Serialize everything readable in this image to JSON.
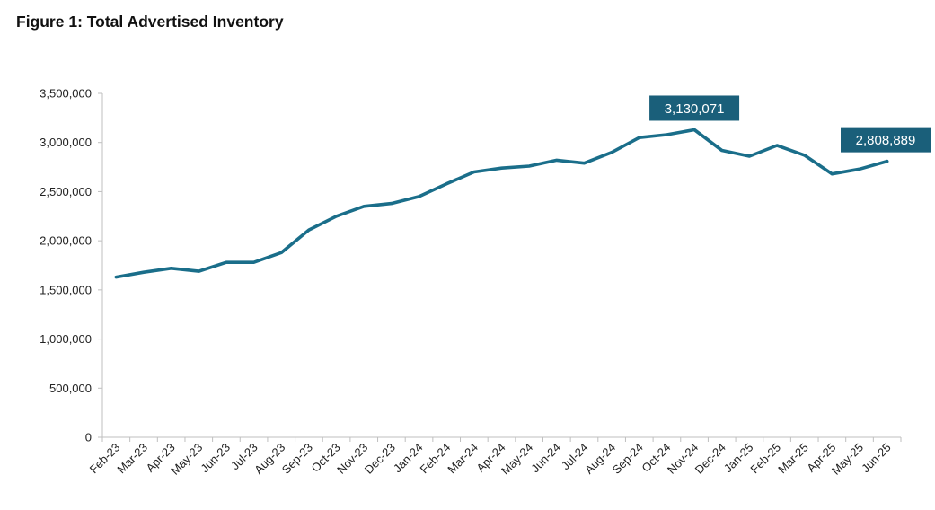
{
  "figure_title": "Figure 1: Total Advertised Inventory",
  "colors": {
    "line": "#1a6e8a",
    "callout_bg": "#1a5f7a",
    "axis": "#bfbfbf",
    "text": "#222222"
  },
  "chart_data": {
    "type": "line",
    "title": "Figure 1: Total Advertised Inventory",
    "xlabel": "",
    "ylabel": "",
    "ylim": [
      0,
      3500000
    ],
    "yticks": [
      0,
      500000,
      1000000,
      1500000,
      2000000,
      2500000,
      3000000,
      3500000
    ],
    "ytick_labels": [
      "0",
      "500,000",
      "1,000,000",
      "1,500,000",
      "2,000,000",
      "2,500,000",
      "3,000,000",
      "3,500,000"
    ],
    "grid": false,
    "legend": "none",
    "categories": [
      "Feb-23",
      "Mar-23",
      "Apr-23",
      "May-23",
      "Jun-23",
      "Jul-23",
      "Aug-23",
      "Sep-23",
      "Oct-23",
      "Nov-23",
      "Dec-23",
      "Jan-24",
      "Feb-24",
      "Mar-24",
      "Apr-24",
      "May-24",
      "Jun-24",
      "Jul-24",
      "Aug-24",
      "Sep-24",
      "Oct-24",
      "Nov-24",
      "Dec-24",
      "Jan-25",
      "Feb-25",
      "Mar-25",
      "Apr-25",
      "May-25",
      "Jun-25"
    ],
    "series": [
      {
        "values": [
          1630000,
          1680000,
          1720000,
          1690000,
          1780000,
          1780000,
          1880000,
          2110000,
          2250000,
          2350000,
          2380000,
          2450000,
          2580000,
          2700000,
          2740000,
          2760000,
          2820000,
          2790000,
          2900000,
          3050000,
          3080000,
          3130071,
          2920000,
          2860000,
          2970000,
          2870000,
          2680000,
          2730000,
          2808889
        ]
      }
    ],
    "annotations": [
      {
        "category": "Nov-24",
        "value": 3130071,
        "label": "3,130,071"
      },
      {
        "category": "Jun-25",
        "value": 2808889,
        "label": "2,808,889"
      }
    ]
  }
}
